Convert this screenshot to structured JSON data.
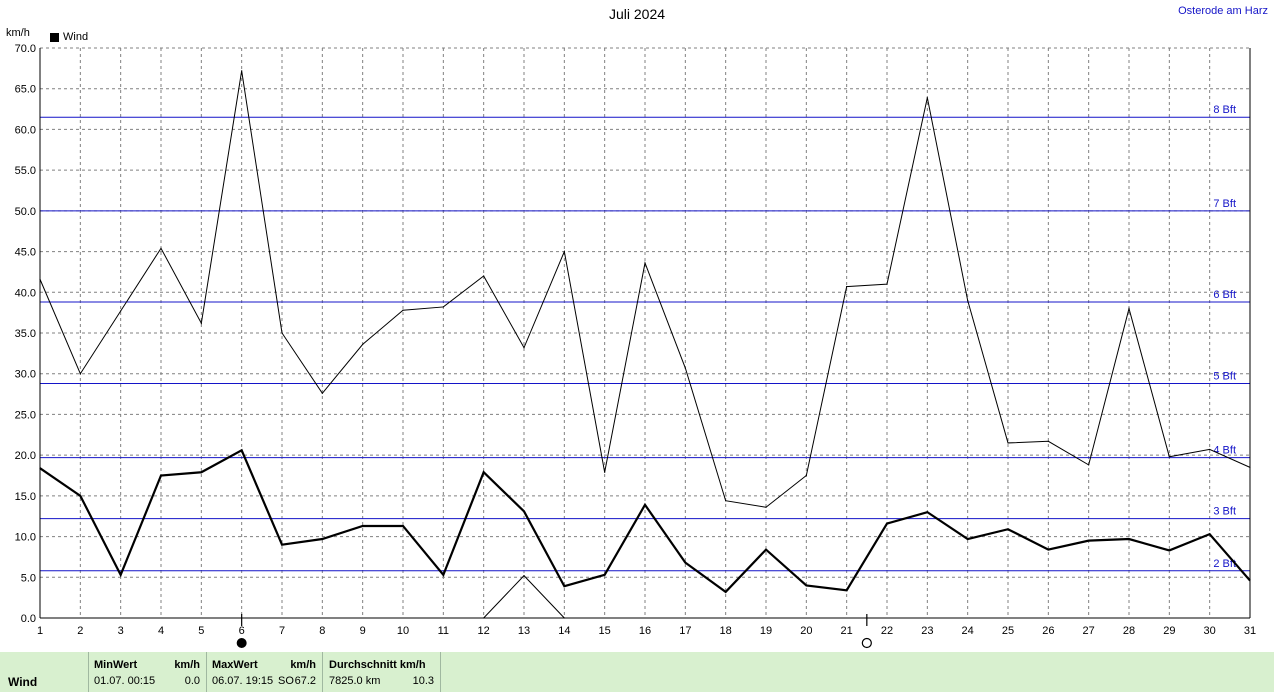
{
  "title": "Juli 2024",
  "station": "Osterode am Harz",
  "unit_label": "km/h",
  "legend": {
    "label": "Wind"
  },
  "chart_data": {
    "type": "line",
    "title": "Juli 2024",
    "ylabel": "km/h",
    "ylim": [
      0,
      70
    ],
    "xlim": [
      1,
      31
    ],
    "grid": true,
    "legend_position": "top-left",
    "y_ticks": [
      "0.0",
      "5.0",
      "10.0",
      "15.0",
      "20.0",
      "25.0",
      "30.0",
      "35.0",
      "40.0",
      "45.0",
      "50.0",
      "55.0",
      "60.0",
      "65.0",
      "70.0"
    ],
    "x_ticks": [
      "1",
      "2",
      "3",
      "4",
      "5",
      "6",
      "7",
      "8",
      "9",
      "10",
      "11",
      "12",
      "13",
      "14",
      "15",
      "16",
      "17",
      "18",
      "19",
      "20",
      "21",
      "22",
      "23",
      "24",
      "25",
      "26",
      "27",
      "28",
      "29",
      "30",
      "31"
    ],
    "series": [
      {
        "name": "Wind",
        "style": "bold",
        "x": [
          1,
          2,
          3,
          4,
          5,
          6,
          7,
          8,
          9,
          10,
          11,
          12,
          13,
          14,
          15,
          16,
          17,
          18,
          19,
          20,
          21,
          22,
          23,
          24,
          25,
          26,
          27,
          28,
          29,
          30,
          31
        ],
        "values": [
          18.4,
          15.0,
          5.3,
          17.5,
          17.9,
          20.6,
          9.0,
          9.7,
          11.3,
          11.3,
          5.3,
          17.9,
          13.1,
          3.9,
          5.3,
          13.9,
          6.8,
          3.2,
          8.4,
          4.0,
          3.4,
          11.6,
          13.0,
          9.7,
          10.9,
          8.4,
          9.5,
          9.7,
          8.3,
          10.3,
          4.6
        ]
      },
      {
        "style": "thin",
        "x": [
          1,
          2,
          3,
          4,
          5,
          6,
          7,
          8,
          9,
          10,
          11,
          12,
          13,
          14,
          15,
          16,
          17,
          18,
          19,
          20,
          21,
          22,
          23,
          24,
          25,
          26,
          27,
          28,
          29,
          30,
          31
        ],
        "values": [
          41.6,
          30.0,
          37.7,
          45.4,
          36.2,
          67.2,
          35.0,
          27.6,
          33.6,
          37.8,
          38.2,
          42.0,
          33.2,
          45.0,
          17.9,
          43.6,
          30.7,
          14.4,
          13.6,
          17.5,
          40.7,
          41.0,
          63.9,
          39.0,
          21.5,
          21.7,
          18.8,
          38.0,
          19.8,
          20.7,
          18.5
        ]
      },
      {
        "style": "thin-min",
        "x": [
          12,
          13,
          14
        ],
        "values": [
          0.0,
          5.2,
          0.0
        ]
      }
    ],
    "reference_lines": [
      {
        "label": "2 Bft",
        "value": 5.8
      },
      {
        "label": "3 Bft",
        "value": 12.2
      },
      {
        "label": "4 Bft",
        "value": 19.7
      },
      {
        "label": "5 Bft",
        "value": 28.8
      },
      {
        "label": "6 Bft",
        "value": 38.8
      },
      {
        "label": "7 Bft",
        "value": 50.0
      },
      {
        "label": "8 Bft",
        "value": 61.5
      }
    ],
    "markers": [
      {
        "day": 6,
        "symbol": "full-moon"
      },
      {
        "day": 21.5,
        "symbol": "new-moon"
      }
    ],
    "colors": {
      "series": "#000000",
      "reference": "#1414c8",
      "grid": "#808080",
      "footer_bg": "#d8f0cf"
    }
  },
  "footer": {
    "row_label": "Wind",
    "min": {
      "header": "MinWert",
      "unit": "km/h",
      "datetime": "01.07.  00:15",
      "value": "0.0"
    },
    "max": {
      "header": "MaxWert",
      "unit": "km/h",
      "datetime": "06.07.  19:15",
      "dir": "SO",
      "value": "67.2"
    },
    "avg": {
      "header": "Durchschnitt km/h",
      "distance": "7825.0 km",
      "value": "10.3"
    }
  }
}
